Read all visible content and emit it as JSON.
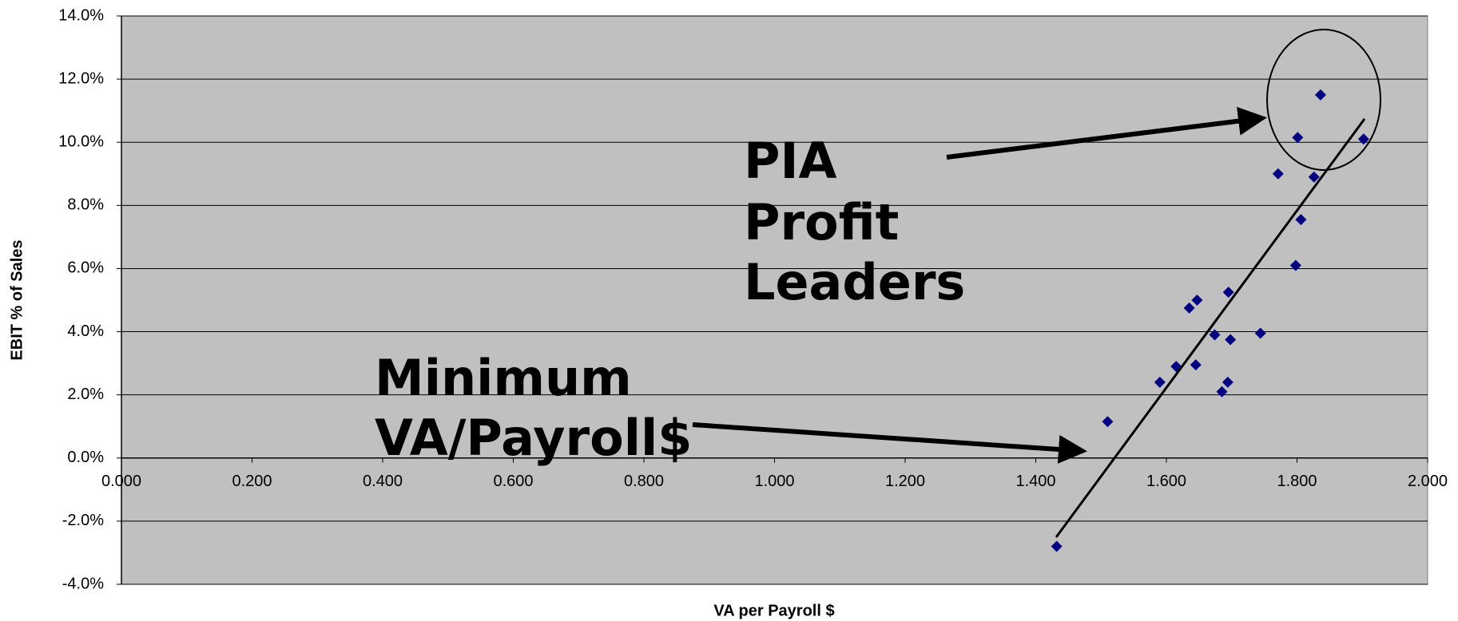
{
  "chart_data": {
    "type": "scatter",
    "xlabel": "VA per Payroll $",
    "ylabel": "EBIT % of Sales",
    "color": "#000080",
    "grid": true,
    "x": [
      1.432,
      1.51,
      1.59,
      1.615,
      1.635,
      1.647,
      1.645,
      1.674,
      1.685,
      1.694,
      1.695,
      1.698,
      1.744,
      1.771,
      1.798,
      1.801,
      1.806,
      1.826,
      1.836,
      1.902
    ],
    "values": [
      -2.8,
      1.15,
      2.4,
      2.9,
      4.75,
      5.0,
      2.95,
      3.9,
      2.1,
      2.4,
      5.25,
      3.75,
      3.95,
      9.0,
      6.1,
      10.15,
      7.55,
      8.9,
      11.5,
      10.1
    ],
    "xlim": [
      0,
      2
    ],
    "ylim": [
      -4,
      14
    ],
    "xticks": [
      {
        "value": 0,
        "label": "0.000"
      },
      {
        "value": 0.2,
        "label": "0.200"
      },
      {
        "value": 0.4,
        "label": "0.400"
      },
      {
        "value": 0.6,
        "label": "0.600"
      },
      {
        "value": 0.8,
        "label": "0.800"
      },
      {
        "value": 1,
        "label": "1.000"
      },
      {
        "value": 1.2,
        "label": "1.200"
      },
      {
        "value": 1.4,
        "label": "1.400"
      },
      {
        "value": 1.6,
        "label": "1.600"
      },
      {
        "value": 1.8,
        "label": "1.800"
      },
      {
        "value": 2,
        "label": "2.000"
      }
    ],
    "yticks": [
      {
        "value": -4,
        "label": "-4.0%"
      },
      {
        "value": -2,
        "label": "-2.0%"
      },
      {
        "value": 0,
        "label": "0.0%"
      },
      {
        "value": 2,
        "label": "2.0%"
      },
      {
        "value": 4,
        "label": "4.0%"
      },
      {
        "value": 6,
        "label": "6.0%"
      },
      {
        "value": 8,
        "label": "8.0%"
      },
      {
        "value": 10,
        "label": "10.0%"
      },
      {
        "value": 12,
        "label": "12.0%"
      },
      {
        "value": 14,
        "label": "14.0%"
      }
    ],
    "annotations": [
      {
        "text": [
          "PIA",
          "Profit",
          "Leaders"
        ]
      },
      {
        "text": [
          "Minimum",
          "VA/Payroll$"
        ]
      }
    ]
  }
}
